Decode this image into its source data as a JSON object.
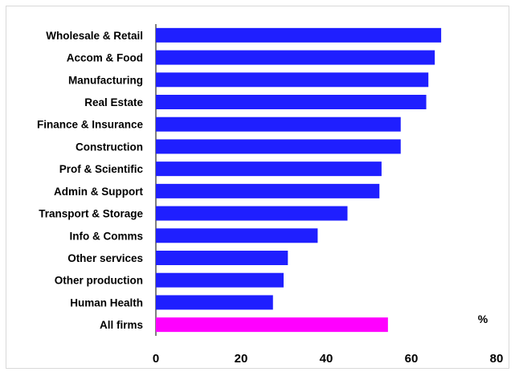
{
  "chart_data": {
    "type": "bar",
    "orientation": "horizontal",
    "categories": [
      "Wholesale & Retail",
      "Accom & Food",
      "Manufacturing",
      "Real Estate",
      "Finance & Insurance",
      "Construction",
      "Prof & Scientific",
      "Admin & Support",
      "Transport & Storage",
      "Info & Comms",
      "Other services",
      "Other production",
      "Human Health",
      "All firms"
    ],
    "values": [
      67,
      65.5,
      64,
      63.5,
      57.5,
      57.5,
      53,
      52.5,
      45,
      38,
      31,
      30,
      27.5,
      54.5
    ],
    "colors": [
      "#1f1fff",
      "#1f1fff",
      "#1f1fff",
      "#1f1fff",
      "#1f1fff",
      "#1f1fff",
      "#1f1fff",
      "#1f1fff",
      "#1f1fff",
      "#1f1fff",
      "#1f1fff",
      "#1f1fff",
      "#1f1fff",
      "#ff00ff"
    ],
    "xlim": [
      0,
      80
    ],
    "xticks": [
      0,
      20,
      40,
      60,
      80
    ],
    "unit_label": "%",
    "title": "",
    "xlabel": "",
    "ylabel": "",
    "grid": false
  }
}
